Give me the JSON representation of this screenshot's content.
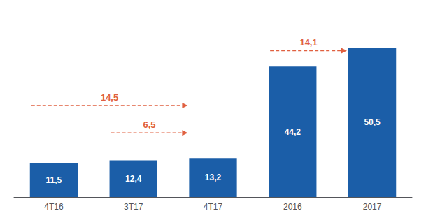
{
  "chart_data": {
    "type": "bar",
    "categories": [
      "4T16",
      "3T17",
      "4T17",
      "2016",
      "2017"
    ],
    "values": [
      11.5,
      12.4,
      13.2,
      44.2,
      50.5
    ],
    "value_labels": [
      "11,5",
      "12,4",
      "13,2",
      "44,2",
      "50,5"
    ],
    "data_labels": true,
    "color": "#1B5EA8",
    "ylim": [
      0,
      62
    ],
    "tick_labels": "x",
    "grid": false,
    "annotations": [
      {
        "text": "14,5",
        "from": "4T16",
        "to": "4T17"
      },
      {
        "text": "6,5",
        "from": "3T17",
        "to": "4T17"
      },
      {
        "text": "14,1",
        "from": "2016",
        "to": "2017"
      }
    ]
  }
}
